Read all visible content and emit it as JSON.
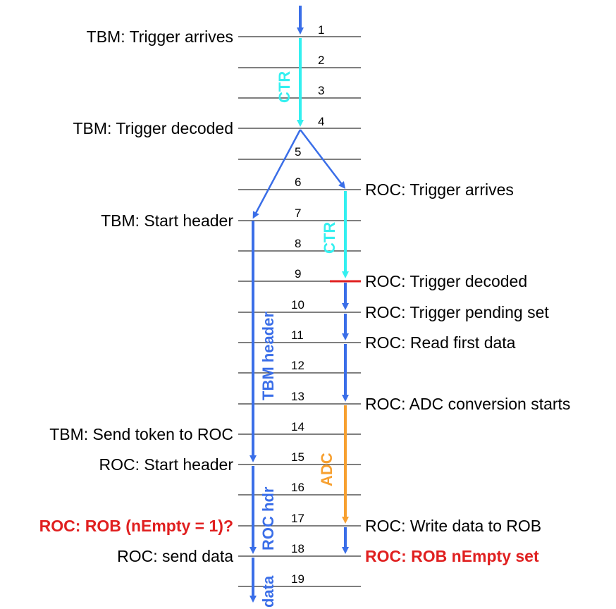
{
  "colors": {
    "blue": "#3a6ee8",
    "cyan": "#33f0f0",
    "orange": "#f7a030",
    "red": "#e02020",
    "line": "#333333"
  },
  "steps": [
    "1",
    "2",
    "3",
    "4",
    "5",
    "6",
    "7",
    "8",
    "9",
    "10",
    "11",
    "12",
    "13",
    "14",
    "15",
    "16",
    "17",
    "18",
    "19"
  ],
  "left_labels": {
    "tbm_trigger_arrives": "TBM: Trigger arrives",
    "tbm_trigger_decoded": "TBM: Trigger decoded",
    "tbm_start_header": "TBM: Start header",
    "tbm_send_token": "TBM: Send token to ROC",
    "roc_start_header": "ROC: Start header",
    "roc_rob_check": "ROC: ROB (nEmpty = 1)?",
    "roc_send_data": "ROC: send data"
  },
  "right_labels": {
    "roc_trigger_arrives": "ROC: Trigger arrives",
    "roc_trigger_decoded": "ROC: Trigger decoded",
    "roc_trigger_pending": "ROC: Trigger pending set",
    "roc_read_first": "ROC: Read first data",
    "roc_adc_starts": "ROC: ADC conversion starts",
    "roc_write_rob": "ROC: Write data to ROB",
    "roc_rob_nempty": "ROC: ROB nEmpty set"
  },
  "vertical_labels": {
    "ctr_tbm": "CTR",
    "ctr_roc": "CTR",
    "tbm_header": "TBM header",
    "adc": "ADC",
    "roc_hdr": "ROC hdr",
    "data": "data"
  }
}
